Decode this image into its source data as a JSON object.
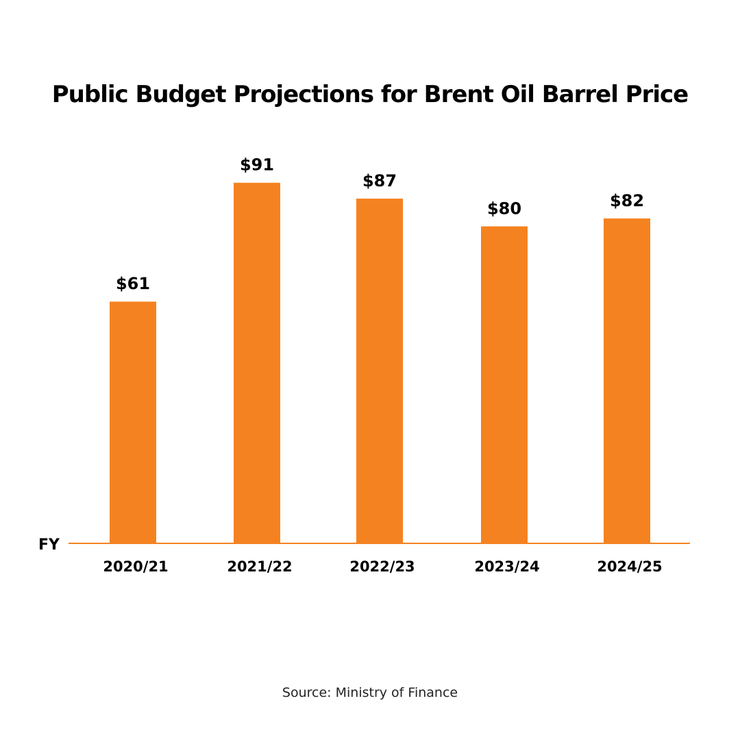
{
  "title": "Public Budget Projections for Brent Oil Barrel Price",
  "source": "Source: Ministry of Finance",
  "colors": {
    "bar": "#F58220",
    "axis": "#F58220",
    "text": "#000000"
  },
  "chart_data": {
    "type": "bar",
    "title": "Public Budget Projections for Brent Oil Barrel Price",
    "xlabel": "FY",
    "ylabel": "",
    "categories": [
      "2020/21",
      "2021/22",
      "2022/23",
      "2023/24",
      "2024/25"
    ],
    "values": [
      61,
      91,
      87,
      80,
      82
    ],
    "data_labels": [
      "$61",
      "$91",
      "$87",
      "$80",
      "$82"
    ],
    "ylim": [
      0,
      106
    ],
    "grid": false,
    "legend": "none"
  }
}
